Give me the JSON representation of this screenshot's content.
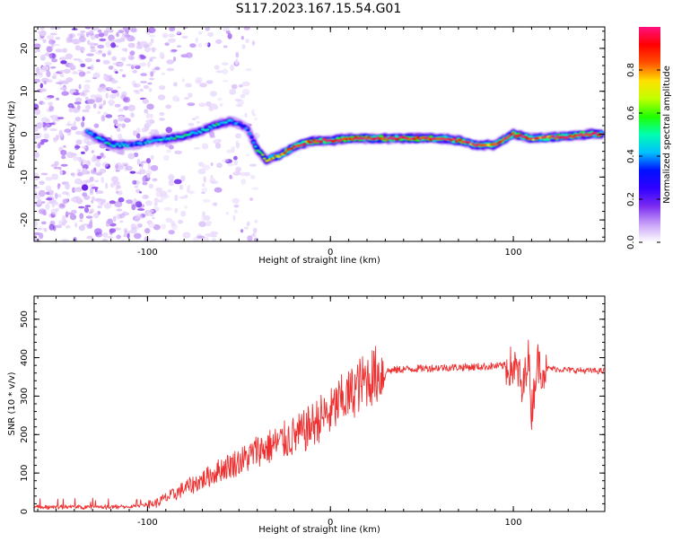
{
  "title": "S117.2023.167.15.54.G01",
  "chart_data": [
    {
      "type": "heatmap",
      "xlabel": "Height of straight line (km)",
      "ylabel": "Frequency (Hz)",
      "xlim": [
        -162,
        150
      ],
      "ylim": [
        -25,
        25
      ],
      "x_ticks": [
        "-100",
        "0",
        "100"
      ],
      "y_ticks": [
        "-20",
        "-10",
        "0",
        "10",
        "20"
      ],
      "grid": false,
      "ridge": {
        "x": [
          -133,
          -120,
          -108,
          -98,
          -88,
          -80,
          -72,
          -66,
          -60,
          -55,
          -50,
          -45,
          -40,
          -35,
          -28,
          -20,
          -14,
          -8,
          0,
          10,
          20,
          30,
          40,
          50,
          60,
          70,
          80,
          90,
          96,
          100,
          110,
          120,
          130,
          140,
          148
        ],
        "y": [
          0.5,
          -2.5,
          -2.5,
          -1.5,
          -1.0,
          -0.5,
          0.5,
          1.5,
          2.5,
          3.0,
          2.5,
          1.0,
          -3.5,
          -6.0,
          -5.0,
          -3.0,
          -2.0,
          -1.5,
          -1.5,
          -1.0,
          -1.0,
          -1.0,
          -1.0,
          -1.0,
          -1.0,
          -1.5,
          -2.5,
          -2.5,
          -1.0,
          0.0,
          -1.0,
          -0.8,
          -0.5,
          0.0,
          0.0
        ],
        "amplitude": [
          0.35,
          0.5,
          0.35,
          0.4,
          0.45,
          0.5,
          0.45,
          0.5,
          0.45,
          0.4,
          0.35,
          0.3,
          0.5,
          0.65,
          0.8,
          0.9,
          0.92,
          0.94,
          0.95,
          0.96,
          0.97,
          0.97,
          0.96,
          0.95,
          0.94,
          0.9,
          0.92,
          0.88,
          0.92,
          0.94,
          0.9,
          0.9,
          0.93,
          0.96,
          0.97
        ]
      },
      "colorbar": {
        "label": "Normalized spectral amplitude",
        "range": [
          0,
          1
        ],
        "ticks": [
          "0.0",
          "0.2",
          "0.4",
          "0.6",
          "0.8"
        ],
        "colors": [
          "#ffffff",
          "#c9a2f8",
          "#7c2df0",
          "#3000ff",
          "#0010ff",
          "#00c0ff",
          "#00ffb0",
          "#20ff00",
          "#c0ff00",
          "#ffe000",
          "#ff5000",
          "#ff0000",
          "#ff1080"
        ]
      }
    },
    {
      "type": "line",
      "xlabel": "Height of straight line (km)",
      "ylabel": "SNR (10 * v/v)",
      "xlim": [
        -162,
        150
      ],
      "ylim": [
        0,
        560
      ],
      "x_ticks": [
        "-100",
        "0",
        "100"
      ],
      "y_ticks": [
        "0",
        "100",
        "200",
        "300",
        "400",
        "500"
      ],
      "grid": false,
      "series": [
        {
          "color": "#ee3030",
          "x": [
            -162,
            -140,
            -120,
            -110,
            -100,
            -95,
            -90,
            -85,
            -80,
            -75,
            -70,
            -65,
            -60,
            -55,
            -50,
            -45,
            -40,
            -35,
            -30,
            -25,
            -20,
            -15,
            -10,
            -5,
            0,
            5,
            10,
            15,
            20,
            25,
            30,
            40,
            50,
            60,
            70,
            80,
            90,
            95,
            100,
            103,
            105,
            108,
            110,
            113,
            116,
            120,
            130,
            140,
            150
          ],
          "values": [
            12,
            12,
            12,
            12,
            18,
            22,
            35,
            45,
            60,
            70,
            82,
            95,
            110,
            120,
            130,
            140,
            160,
            165,
            175,
            185,
            195,
            205,
            225,
            245,
            255,
            285,
            300,
            325,
            345,
            355,
            365,
            370,
            372,
            374,
            375,
            376,
            378,
            378,
            375,
            360,
            300,
            420,
            260,
            390,
            370,
            372,
            368,
            366,
            365
          ]
        }
      ]
    }
  ]
}
